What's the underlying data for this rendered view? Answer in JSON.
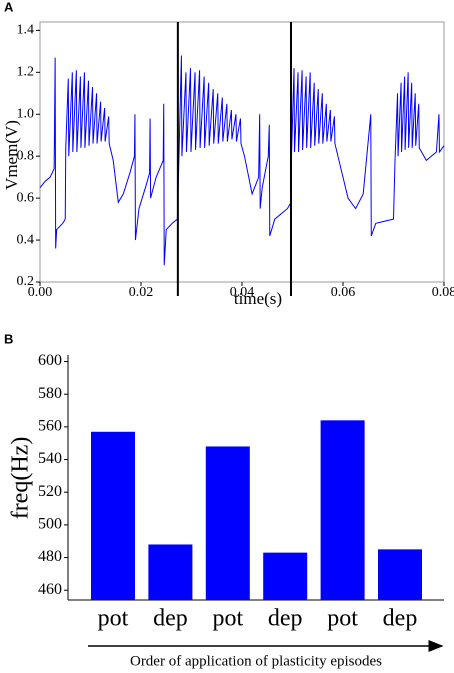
{
  "chart_data": [
    {
      "type": "line",
      "panel": "A",
      "xlabel": "time(s)",
      "ylabel": "Vmem(V)",
      "color": "#0000ff",
      "xlim": [
        0,
        0.08
      ],
      "ylim": [
        0.2,
        1.44
      ],
      "xticks": [
        {
          "value": 0,
          "label": "0.00"
        },
        {
          "value": 0.02,
          "label": "0.02"
        },
        {
          "value": 0.04,
          "label": "0.04"
        },
        {
          "value": 0.06,
          "label": "0.06"
        },
        {
          "value": 0.08,
          "label": "0.08"
        }
      ],
      "yticks": [
        0.2,
        0.4,
        0.6,
        0.8,
        {
          "value": 1,
          "label": "1.0"
        },
        1.2,
        1.4
      ],
      "vlines": [
        0.0273,
        0.0497
      ],
      "x": [
        0,
        0.001,
        0.002,
        0.0028,
        0.003,
        0.0031,
        0.0033,
        0.0045,
        0.005,
        0.0051,
        0.0056,
        0.0057,
        0.0064,
        0.0065,
        0.0072,
        0.0073,
        0.008,
        0.0081,
        0.0088,
        0.0089,
        0.0096,
        0.0097,
        0.0104,
        0.0105,
        0.0112,
        0.0113,
        0.012,
        0.0121,
        0.0128,
        0.0129,
        0.0136,
        0.0137,
        0.0145,
        0.0155,
        0.0165,
        0.0178,
        0.0187,
        0.0188,
        0.0189,
        0.0196,
        0.021,
        0.0217,
        0.0218,
        0.0219,
        0.023,
        0.0244,
        0.0245,
        0.0246,
        0.025,
        0.0262,
        0.0272,
        0.0275,
        0.028,
        0.0281,
        0.0289,
        0.029,
        0.0298,
        0.0299,
        0.0307,
        0.0308,
        0.0316,
        0.0317,
        0.0325,
        0.0326,
        0.0334,
        0.0335,
        0.0343,
        0.0344,
        0.0352,
        0.0353,
        0.0361,
        0.0362,
        0.037,
        0.0371,
        0.0379,
        0.038,
        0.0388,
        0.0389,
        0.0397,
        0.0398,
        0.0405,
        0.042,
        0.0433,
        0.0435,
        0.0436,
        0.044,
        0.0452,
        0.0454,
        0.0455,
        0.0465,
        0.049,
        0.0497,
        0.0498,
        0.0503,
        0.0504,
        0.0511,
        0.0512,
        0.0519,
        0.052,
        0.0527,
        0.0528,
        0.0535,
        0.0536,
        0.0543,
        0.0544,
        0.0551,
        0.0552,
        0.0559,
        0.056,
        0.0567,
        0.0568,
        0.0575,
        0.0576,
        0.0583,
        0.0584,
        0.0595,
        0.061,
        0.0625,
        0.064,
        0.0655,
        0.0656,
        0.0665,
        0.07,
        0.0703,
        0.0708,
        0.0709,
        0.0715,
        0.0716,
        0.0722,
        0.0723,
        0.0729,
        0.073,
        0.0736,
        0.0737,
        0.0743,
        0.0744,
        0.075,
        0.0751,
        0.0765,
        0.0785,
        0.079,
        0.0791,
        0.08
      ],
      "values": [
        0.65,
        0.68,
        0.7,
        0.74,
        1.27,
        0.36,
        0.45,
        0.48,
        0.5,
        0.84,
        1.17,
        0.8,
        1.2,
        0.82,
        1.21,
        0.82,
        1.18,
        0.84,
        1.2,
        0.84,
        1.16,
        0.85,
        1.13,
        0.86,
        1.1,
        0.86,
        1.06,
        0.87,
        1.03,
        0.87,
        0.99,
        0.86,
        0.78,
        0.58,
        0.62,
        0.72,
        0.8,
        1.0,
        0.4,
        0.55,
        0.66,
        0.72,
        0.98,
        0.6,
        0.7,
        0.78,
        1.05,
        0.28,
        0.45,
        0.48,
        0.5,
        0.78,
        1.28,
        0.8,
        1.2,
        0.82,
        1.22,
        0.82,
        1.2,
        0.83,
        1.21,
        0.84,
        1.18,
        0.84,
        1.15,
        0.85,
        1.12,
        0.86,
        1.1,
        0.86,
        1.08,
        0.87,
        1.05,
        0.87,
        1.02,
        0.88,
        1.0,
        0.87,
        0.98,
        0.86,
        0.8,
        0.62,
        0.7,
        1.0,
        0.55,
        0.65,
        0.8,
        0.95,
        0.42,
        0.5,
        0.55,
        0.58,
        0.8,
        1.22,
        0.82,
        1.2,
        0.82,
        1.21,
        0.83,
        1.18,
        0.84,
        1.2,
        0.84,
        1.15,
        0.85,
        1.12,
        0.86,
        1.1,
        0.86,
        1.05,
        0.87,
        1.02,
        0.87,
        0.99,
        0.86,
        0.75,
        0.6,
        0.55,
        0.62,
        1.0,
        0.42,
        0.48,
        0.5,
        0.78,
        1.1,
        0.8,
        1.15,
        0.82,
        1.18,
        0.83,
        1.2,
        0.84,
        1.15,
        0.84,
        1.1,
        0.85,
        1.05,
        0.84,
        0.78,
        0.82,
        1.0,
        0.82,
        0.85
      ]
    },
    {
      "type": "bar",
      "panel": "B",
      "ylabel": "freq(Hz)",
      "xlabel": "Order of application of plasticity episodes",
      "color": "#0000ff",
      "categories": [
        "pot",
        "dep",
        "pot",
        "dep",
        "pot",
        "dep"
      ],
      "values": [
        557,
        488,
        548,
        483,
        564,
        485
      ],
      "ylim": [
        454,
        604
      ],
      "yticks": [
        460,
        480,
        500,
        520,
        540,
        560,
        580,
        600
      ]
    }
  ]
}
